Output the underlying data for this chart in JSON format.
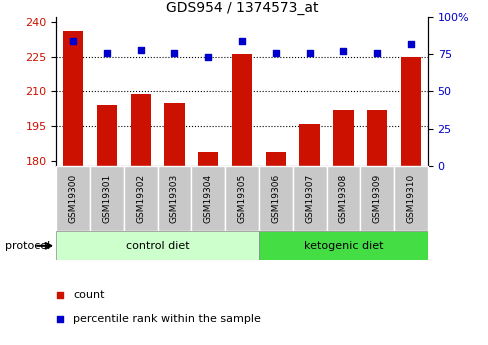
{
  "title": "GDS954 / 1374573_at",
  "samples": [
    "GSM19300",
    "GSM19301",
    "GSM19302",
    "GSM19303",
    "GSM19304",
    "GSM19305",
    "GSM19306",
    "GSM19307",
    "GSM19308",
    "GSM19309",
    "GSM19310"
  ],
  "counts": [
    236,
    204,
    209,
    205,
    184,
    226,
    184,
    196,
    202,
    202,
    225
  ],
  "percentiles": [
    84,
    76,
    78,
    76,
    73,
    84,
    76,
    76,
    77,
    76,
    82
  ],
  "ylim_left": [
    178,
    242
  ],
  "ylim_right": [
    0,
    100
  ],
  "yticks_left": [
    180,
    195,
    210,
    225,
    240
  ],
  "yticks_right": [
    0,
    25,
    50,
    75,
    100
  ],
  "ytick_labels_right": [
    "0",
    "25",
    "50",
    "75",
    "100%"
  ],
  "hlines": [
    195,
    210,
    225
  ],
  "bar_color": "#cc1100",
  "dot_color": "#0000cc",
  "n_control": 6,
  "n_ketogenic": 5,
  "control_label": "control diet",
  "ketogenic_label": "ketogenic diet",
  "protocol_label": "protocol",
  "bg_color_main": "#ffffff",
  "bg_color_xticklabels": "#c8c8c8",
  "bg_color_control": "#ccffcc",
  "bg_color_ketogenic": "#44dd44",
  "title_fontsize": 10,
  "tick_fontsize": 8,
  "xtick_fontsize": 6.5
}
